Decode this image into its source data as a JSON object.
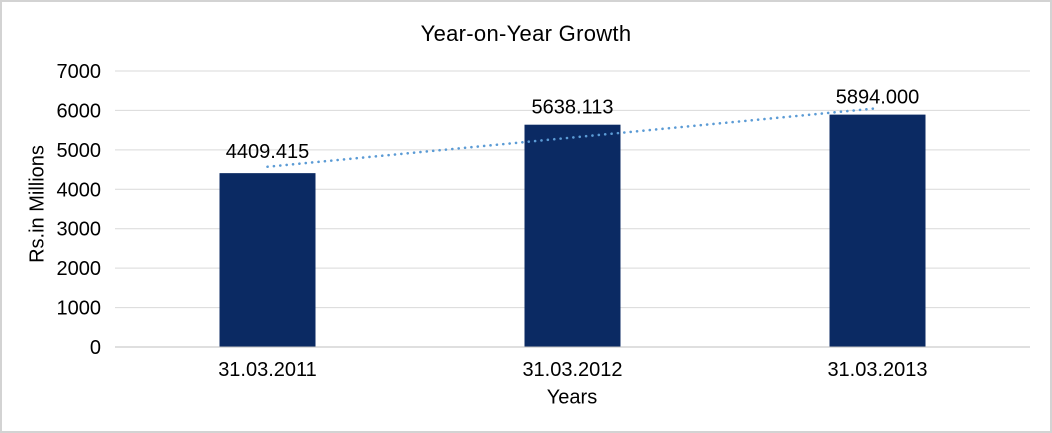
{
  "chart_data": {
    "type": "bar",
    "title": "Year-on-Year Growth",
    "xlabel": "Years",
    "ylabel": "Rs.in Millions",
    "categories": [
      "31.03.2011",
      "31.03.2012",
      "31.03.2013"
    ],
    "values": [
      4409.415,
      5638.113,
      5894.0
    ],
    "data_labels": [
      "4409.415",
      "5638.113",
      "5894.000"
    ],
    "ylim": [
      0,
      7000
    ],
    "ytick_interval": 1000,
    "yticks": [
      0,
      1000,
      2000,
      3000,
      4000,
      5000,
      6000,
      7000
    ],
    "grid": "horizontal",
    "legend_position": "none",
    "trendline": {
      "type": "linear",
      "style": "dotted"
    },
    "colors": {
      "bar": "#0b2a63",
      "trendline": "#5b9bd5",
      "gridline": "#d9d9d9",
      "axis_line": "#bfbfbf",
      "text": "#000000",
      "background": "#ffffff",
      "frame_border": "#d3d3d3"
    }
  }
}
